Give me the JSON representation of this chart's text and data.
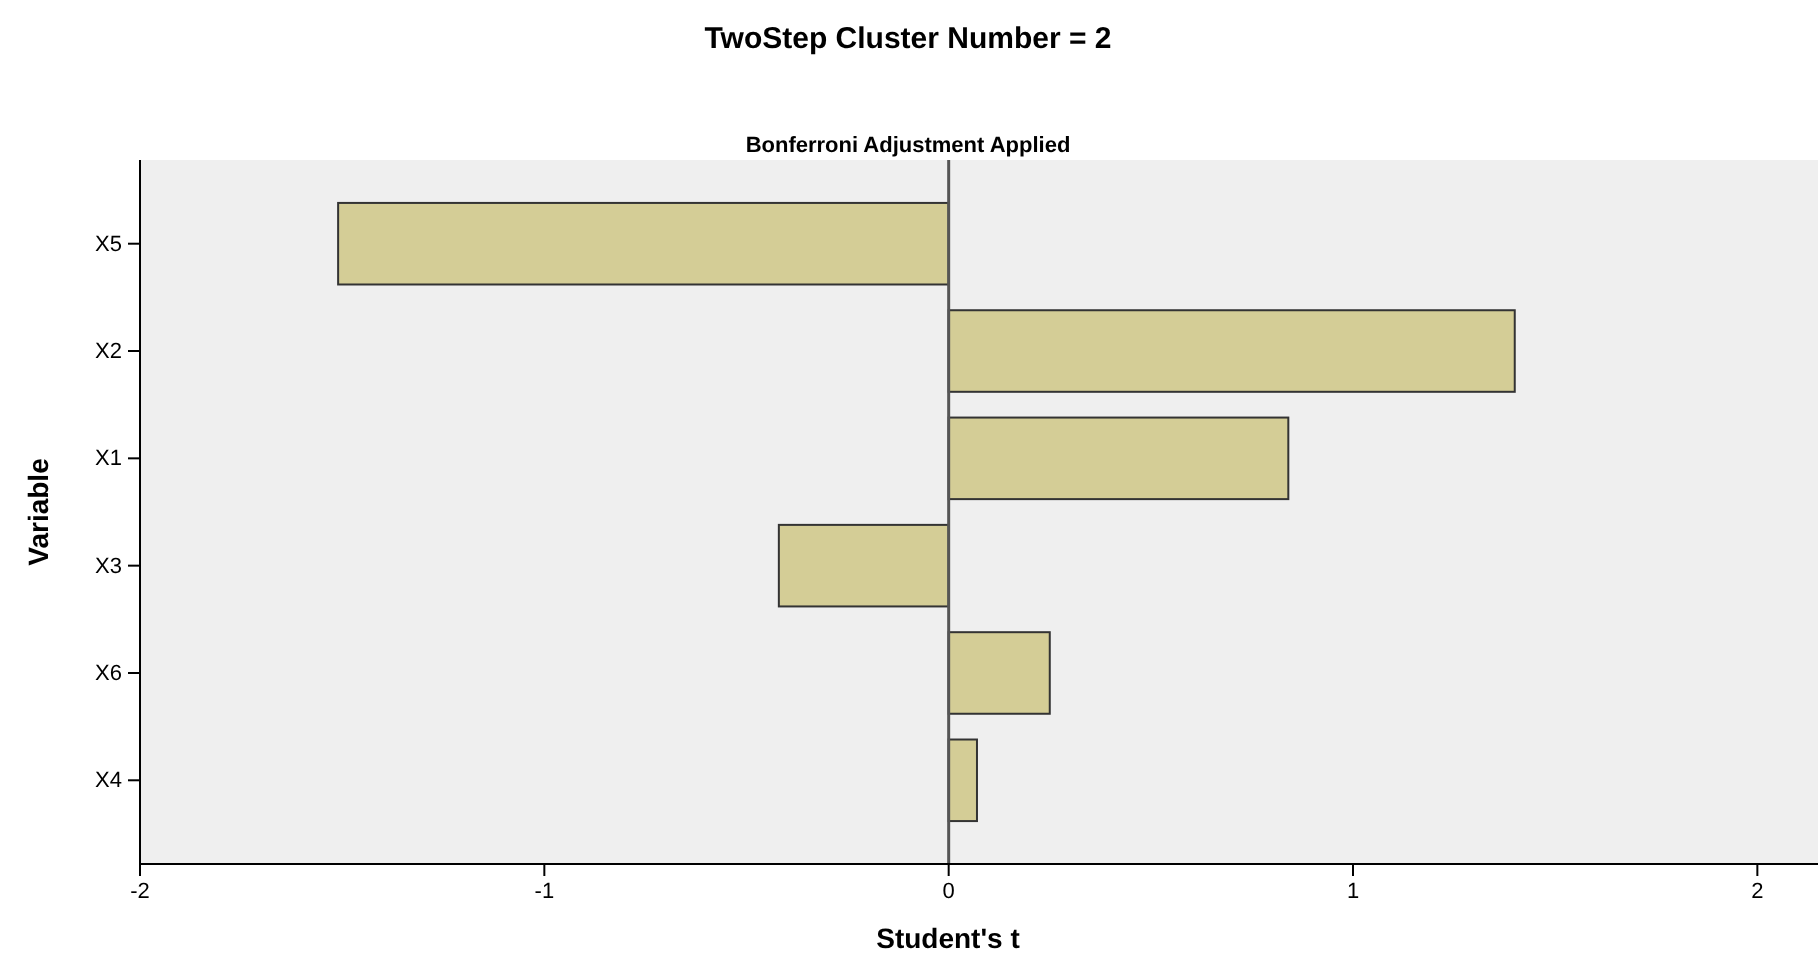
{
  "chart_data": {
    "type": "bar",
    "orientation": "horizontal",
    "title": "TwoStep Cluster Number = 2",
    "subtitle": "Bonferroni Adjustment Applied",
    "xlabel": "Student's t",
    "ylabel": "Variable",
    "categories": [
      "X5",
      "X2",
      "X1",
      "X3",
      "X6",
      "X4"
    ],
    "values": [
      -1.51,
      1.4,
      0.84,
      -0.42,
      0.25,
      0.07
    ],
    "color": "#d4cd96",
    "xlim": [
      -2,
      2.15
    ],
    "xticks": [
      -2,
      -1,
      0,
      1,
      2
    ],
    "ref_lines": [
      {
        "axis": "x",
        "value": 0,
        "color": "#555555"
      }
    ],
    "grid": false
  }
}
